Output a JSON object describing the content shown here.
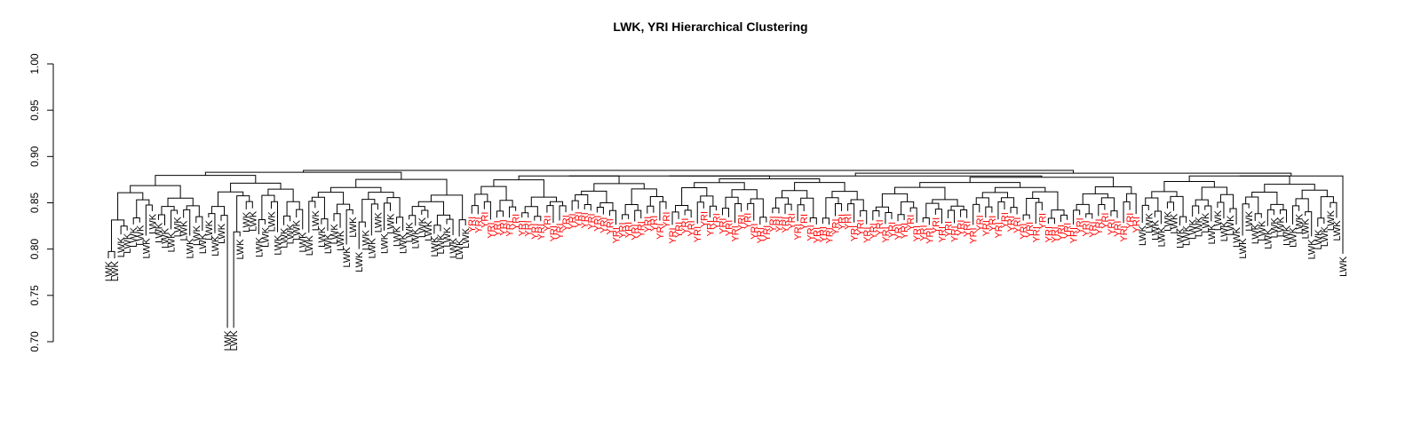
{
  "chart_data": {
    "type": "dendrogram",
    "title": "LWK, YRI Hierarchical Clustering",
    "ylim": [
      0.7,
      1.0
    ],
    "yticks": [
      "0.70",
      "0.75",
      "0.80",
      "0.85",
      "0.90",
      "0.95",
      "1.00"
    ],
    "ytick_values": [
      0.7,
      0.75,
      0.8,
      0.85,
      0.9,
      0.95,
      1.0
    ],
    "leaf_labels": {
      "LWK": "LWK",
      "YRI": "YRI"
    },
    "colors": {
      "LWK": "#000000",
      "YRI": "#ff0000"
    },
    "leaf_group_counts": [
      {
        "label": "LWK",
        "count": 58
      },
      {
        "label": "YRI",
        "count": 107
      },
      {
        "label": "LWK",
        "count": 33
      }
    ],
    "root_height": 0.885,
    "leaf_height_range": [
      0.705,
      0.845
    ]
  }
}
